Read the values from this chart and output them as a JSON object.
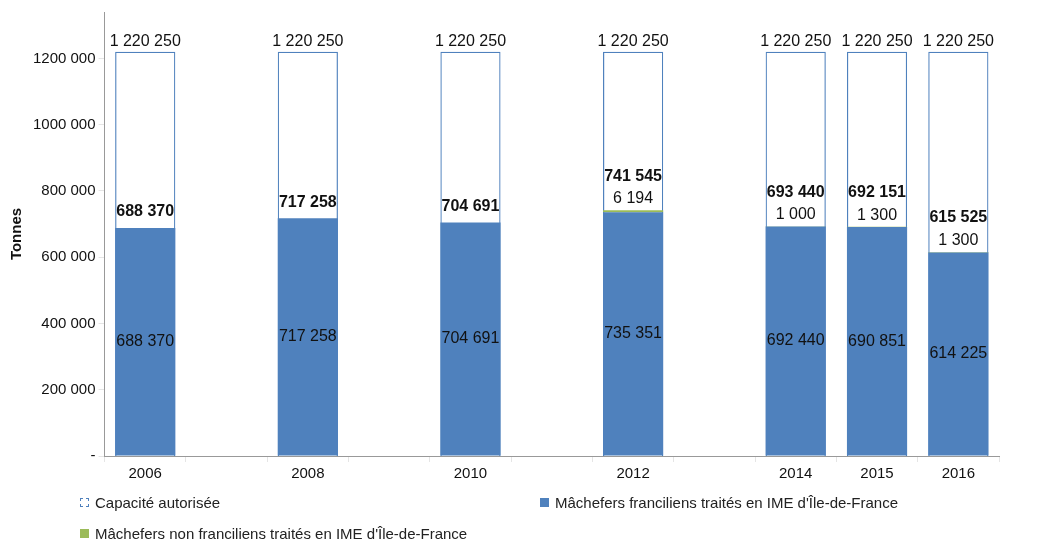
{
  "chart_data": {
    "type": "bar",
    "ylabel": "Tonnes",
    "categories": [
      "2006",
      null,
      "2008",
      null,
      "2010",
      null,
      "2012",
      null,
      "2014",
      "2015",
      "2016"
    ],
    "series": [
      {
        "name": "Capacité autorisée",
        "color": "#4f81bd",
        "line_style": "dashed",
        "axis": "y2",
        "values": [
          1220250,
          null,
          1220250,
          null,
          1220250,
          null,
          1220250,
          null,
          1220250,
          1220250,
          1220250
        ],
        "value_labels": [
          "1 220 250",
          null,
          "1 220 250",
          null,
          "1 220 250",
          null,
          "1 220 250",
          null,
          "1 220 250",
          "1 220 250",
          "1 220 250"
        ]
      },
      {
        "name": "Mâchefers franciliens traités en IME d'Île-de-France",
        "color": "#4f81bd",
        "values": [
          688370,
          null,
          717258,
          null,
          704691,
          null,
          735351,
          null,
          692440,
          690851,
          614225
        ],
        "value_labels": [
          "688 370",
          null,
          "717 258",
          null,
          "704 691",
          null,
          "735 351",
          null,
          "692 440",
          "690 851",
          "614 225"
        ]
      },
      {
        "name": "Mâchefers non franciliens traités en IME d'Île-de-France",
        "color": "#9bbb59",
        "values": [
          null,
          null,
          null,
          null,
          null,
          null,
          6194,
          null,
          1000,
          1300,
          1300
        ],
        "value_labels": [
          null,
          null,
          null,
          null,
          null,
          null,
          "6 194",
          null,
          "1 000",
          "1 300",
          "1 300"
        ]
      }
    ],
    "stacked": true,
    "totals": [
      "688 370",
      null,
      "717 258",
      null,
      "704 691",
      null,
      "741 545",
      null,
      "693 440",
      "692 151",
      "615 525"
    ],
    "ylim": [
      0,
      1340000
    ],
    "yticks": [
      {
        "value": 0,
        "label": "-"
      },
      {
        "value": 200000,
        "label": "200 000"
      },
      {
        "value": 400000,
        "label": "400 000"
      },
      {
        "value": 600000,
        "label": "600 000"
      },
      {
        "value": 800000,
        "label": "800 000"
      },
      {
        "value": 1000000,
        "label": "1000 000"
      },
      {
        "value": 1200000,
        "label": "1200 000"
      }
    ],
    "grid": false,
    "legend": "bottom"
  }
}
